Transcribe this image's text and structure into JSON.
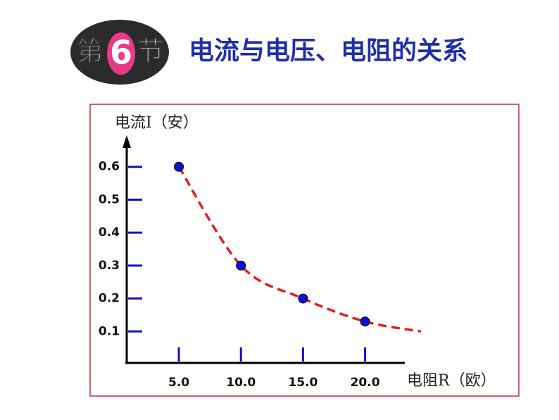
{
  "chart_data": {
    "type": "scatter",
    "badge": [
      "第",
      "6",
      "节"
    ],
    "title": "电流与电压、电阻的关系",
    "y_label": "电流I（安）",
    "x_label": "电阻R（欧）",
    "x": [
      5,
      10,
      15,
      20
    ],
    "series": [
      {
        "color": "#1010d0",
        "values": [
          0.6,
          0.3,
          0.2,
          0.13
        ]
      }
    ],
    "curve": {
      "color": "#e02020",
      "dashed": true,
      "x": [
        5,
        10,
        15,
        20,
        24.5
      ],
      "values": [
        0.6,
        0.3,
        0.2,
        0.13,
        0.1
      ]
    },
    "xlim": [
      0.8,
      23.2
    ],
    "ylim": [
      0,
      0.7
    ],
    "xticks": [
      {
        "value": 5,
        "label": "5.0"
      },
      {
        "value": 10,
        "label": "10.0"
      },
      {
        "value": 15,
        "label": "15.0"
      },
      {
        "value": 20,
        "label": "20.0"
      }
    ],
    "yticks": [
      0.1,
      0.2,
      0.3,
      0.4,
      0.5,
      0.6
    ],
    "tick_color": "#1010d0",
    "frame_color": "#c0303a"
  }
}
